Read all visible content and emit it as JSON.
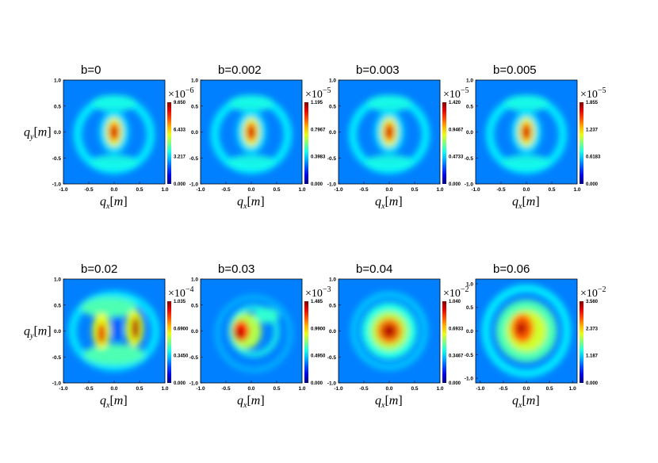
{
  "chart_data": [
    {
      "type": "heatmap",
      "title": "b=0",
      "xlim": [
        -1.0,
        1.0
      ],
      "ylim": [
        -1.0,
        1.0
      ],
      "xticks": [
        "-1.0",
        "-0.5",
        "0.0",
        "0.5",
        "1.0"
      ],
      "yticks": [
        "1.0",
        "0.5",
        "0.0",
        "-0.5",
        "-1.0"
      ],
      "xlabel": "q",
      "xlabel_sub": "x",
      "xlabel_unit": "[m]",
      "ylabel": "q",
      "ylabel_sub": "y",
      "ylabel_unit": "[m]",
      "colorbar": {
        "exponent": "×10",
        "exponent_power": "−6",
        "ticks": [
          "9.650",
          "6.433",
          "3.217",
          "0.000"
        ],
        "max": 9.65e-06
      },
      "pattern": "ring_center"
    },
    {
      "type": "heatmap",
      "title": "b=0.002",
      "xlim": [
        -1.0,
        1.0
      ],
      "ylim": [
        -1.0,
        1.0
      ],
      "xticks": [
        "-1.0",
        "-0.5",
        "0.0",
        "0.5",
        "1.0"
      ],
      "yticks": [
        "1.0",
        "0.5",
        "0.0",
        "-0.5",
        "-1.0"
      ],
      "xlabel": "q",
      "xlabel_sub": "x",
      "xlabel_unit": "[m]",
      "ylabel": "",
      "ylabel_sub": "",
      "ylabel_unit": "",
      "colorbar": {
        "exponent": "×10",
        "exponent_power": "−5",
        "ticks": [
          "1.195",
          "0.7967",
          "0.3983",
          "0.000"
        ],
        "max": 1.195e-05
      },
      "pattern": "ring_center"
    },
    {
      "type": "heatmap",
      "title": "b=0.003",
      "xlim": [
        -1.0,
        1.0
      ],
      "ylim": [
        -1.0,
        1.0
      ],
      "xticks": [
        "-1.0",
        "-0.5",
        "0.0",
        "0.5",
        "1.0"
      ],
      "yticks": [
        "1.0",
        "0.5",
        "0.0",
        "-0.5",
        "-1.0"
      ],
      "xlabel": "q",
      "xlabel_sub": "x",
      "xlabel_unit": "[m]",
      "ylabel": "",
      "ylabel_sub": "",
      "ylabel_unit": "",
      "colorbar": {
        "exponent": "×10",
        "exponent_power": "−5",
        "ticks": [
          "1.420",
          "0.9467",
          "0.4733",
          "0.000"
        ],
        "max": 1.42e-05
      },
      "pattern": "ring_center"
    },
    {
      "type": "heatmap",
      "title": "b=0.005",
      "xlim": [
        -1.0,
        1.0
      ],
      "ylim": [
        -1.0,
        1.0
      ],
      "xticks": [
        "-1.0",
        "-0.5",
        "0.0",
        "0.5",
        "1.0"
      ],
      "yticks": [
        "1.0",
        "0.5",
        "0.0",
        "-0.5",
        "-1.0"
      ],
      "xlabel": "q",
      "xlabel_sub": "x",
      "xlabel_unit": "[m]",
      "ylabel": "",
      "ylabel_sub": "",
      "ylabel_unit": "",
      "colorbar": {
        "exponent": "×10",
        "exponent_power": "−5",
        "ticks": [
          "1.855",
          "1.237",
          "0.6183",
          "0.000"
        ],
        "max": 1.855e-05
      },
      "pattern": "ring_center"
    },
    {
      "type": "heatmap",
      "title": "b=0.02",
      "xlim": [
        -1.0,
        1.0
      ],
      "ylim": [
        -1.0,
        1.0
      ],
      "xticks": [
        "-1.0",
        "-0.5",
        "0.0",
        "0.5",
        "1.0"
      ],
      "yticks": [
        "1.0",
        "0.5",
        "0.0",
        "-0.5",
        "-1.0"
      ],
      "xlabel": "q",
      "xlabel_sub": "x",
      "xlabel_unit": "[m]",
      "ylabel": "q",
      "ylabel_sub": "y",
      "ylabel_unit": "[m]",
      "colorbar": {
        "exponent": "×10",
        "exponent_power": "−4",
        "ticks": [
          "1.035",
          "0.6900",
          "0.3450",
          "0.000"
        ],
        "max": 0.0001035
      },
      "pattern": "two_lobes"
    },
    {
      "type": "heatmap",
      "title": "b=0.03",
      "xlim": [
        -1.0,
        1.0
      ],
      "ylim": [
        -1.0,
        1.0
      ],
      "xticks": [
        "-1.0",
        "-0.5",
        "0.0",
        "0.5",
        "1.0"
      ],
      "yticks": [
        "1.0",
        "0.5",
        "0.0",
        "-0.5",
        "-1.0"
      ],
      "xlabel": "q",
      "xlabel_sub": "x",
      "xlabel_unit": "[m]",
      "ylabel": "",
      "ylabel_sub": "",
      "ylabel_unit": "",
      "colorbar": {
        "exponent": "×10",
        "exponent_power": "−3",
        "ticks": [
          "1.485",
          "0.9900",
          "0.4950",
          "0.000"
        ],
        "max": 0.001485
      },
      "pattern": "spiral"
    },
    {
      "type": "heatmap",
      "title": "b=0.04",
      "xlim": [
        -1.0,
        1.0
      ],
      "ylim": [
        -1.0,
        1.0
      ],
      "xticks": [
        "-1.0",
        "-0.5",
        "0.0",
        "0.5",
        "1.0"
      ],
      "yticks": [
        "1.0",
        "0.5",
        "0.0",
        "-0.5",
        "-1.0"
      ],
      "xlabel": "q",
      "xlabel_sub": "x",
      "xlabel_unit": "[m]",
      "ylabel": "",
      "ylabel_sub": "",
      "ylabel_unit": "",
      "colorbar": {
        "exponent": "×10",
        "exponent_power": "−2",
        "ticks": [
          "1.040",
          "0.6933",
          "0.3467",
          "0.000"
        ],
        "max": 0.0104
      },
      "pattern": "blob"
    },
    {
      "type": "heatmap",
      "title": "b=0.06",
      "xlim": [
        -1.1,
        1.1
      ],
      "ylim": [
        -1.1,
        1.1
      ],
      "xticks": [
        "-1.0",
        "-0.5",
        "0.0",
        "0.5",
        "1.0"
      ],
      "yticks": [
        "1.0",
        "0.5",
        "0.0",
        "-0.5",
        "-1.0"
      ],
      "xlabel": "q",
      "xlabel_sub": "x",
      "xlabel_unit": "[m]",
      "ylabel": "",
      "ylabel_sub": "",
      "ylabel_unit": "",
      "colorbar": {
        "exponent": "×10",
        "exponent_power": "−2",
        "ticks": [
          "3.560",
          "2.373",
          "1.187",
          "0.000"
        ],
        "max": 0.0356
      },
      "pattern": "wide_ring"
    }
  ]
}
